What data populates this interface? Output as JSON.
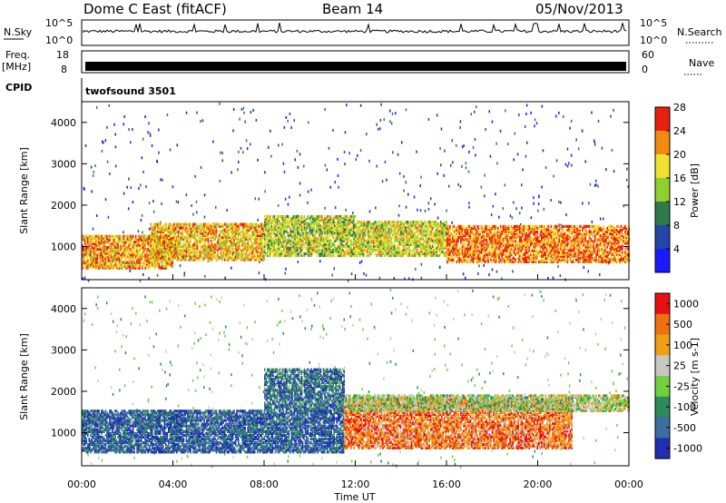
{
  "header": {
    "station": "Dome C East (fitACF)",
    "beam": "Beam 14",
    "date": "05/Nov/2013"
  },
  "top_panels": {
    "nsky_label": "N.Sky",
    "nsky_ticks": [
      "10^5",
      "10^0"
    ],
    "nsearch_label": "N.Search",
    "freq_label_1": "Freq.",
    "freq_label_2": "[MHz]",
    "freq_ticks": [
      "18",
      "8"
    ],
    "nave_ticks": [
      "60",
      "0"
    ],
    "nave_label": "Nave",
    "cpid_label": "CPID",
    "cpid_value": "twofsound 3501"
  },
  "chart_data": [
    {
      "type": "heatmap",
      "name": "power",
      "ylabel": "Slant Range [km]",
      "xlabel": "Time UT",
      "xlim": [
        0,
        24
      ],
      "ylim": [
        200,
        4500
      ],
      "yticks": [
        "1000",
        "2000",
        "3000",
        "4000"
      ],
      "colorbar_label": "Power [dB]",
      "colorbar_ticks": [
        "4",
        "8",
        "12",
        "16",
        "20",
        "24",
        "28"
      ],
      "colorbar_colors": [
        "#1a1aff",
        "#2546a8",
        "#2f7a4a",
        "#8fd02f",
        "#f0e030",
        "#f08a10",
        "#e82010"
      ],
      "bands": [
        {
          "t0": 0.0,
          "t1": 4.0,
          "r0": 450,
          "r1": 1250,
          "level": 0.75
        },
        {
          "t0": 3.0,
          "t1": 8.0,
          "r0": 650,
          "r1": 1550,
          "level": 0.7
        },
        {
          "t0": 8.0,
          "t1": 12.0,
          "r0": 750,
          "r1": 1700,
          "level": 0.55
        },
        {
          "t0": 12.0,
          "t1": 16.0,
          "r0": 750,
          "r1": 1600,
          "level": 0.6
        },
        {
          "t0": 16.0,
          "t1": 24.0,
          "r0": 600,
          "r1": 1500,
          "level": 0.8
        }
      ]
    },
    {
      "type": "heatmap",
      "name": "velocity",
      "ylabel": "Slant Range [km]",
      "xlabel": "Time UT",
      "xlim": [
        0,
        24
      ],
      "ylim": [
        200,
        4500
      ],
      "yticks": [
        "1000",
        "2000",
        "3000",
        "4000"
      ],
      "xticks": [
        "00:00",
        "04:00",
        "08:00",
        "12:00",
        "16:00",
        "20:00",
        "00:00"
      ],
      "colorbar_label": "Velocity [m s-1]",
      "colorbar_ticks": [
        "1000",
        "500",
        "100",
        "25",
        "-25",
        "-100",
        "-500",
        "-1000"
      ],
      "colorbar_colors": [
        "#2030b0",
        "#3a6fa0",
        "#2f8a5a",
        "#70d040",
        "#c8c8c0",
        "#f0a010",
        "#f07010",
        "#e81010"
      ],
      "bands": [
        {
          "t0": 0.0,
          "t1": 11.5,
          "r0": 500,
          "r1": 1500,
          "level": 0.15
        },
        {
          "t0": 8.0,
          "t1": 11.5,
          "r0": 1500,
          "r1": 2500,
          "level": 0.2
        },
        {
          "t0": 11.5,
          "t1": 21.5,
          "r0": 600,
          "r1": 1800,
          "level": 0.78
        },
        {
          "t0": 11.5,
          "t1": 24.0,
          "r0": 1500,
          "r1": 1900,
          "level": 0.5
        }
      ]
    }
  ]
}
